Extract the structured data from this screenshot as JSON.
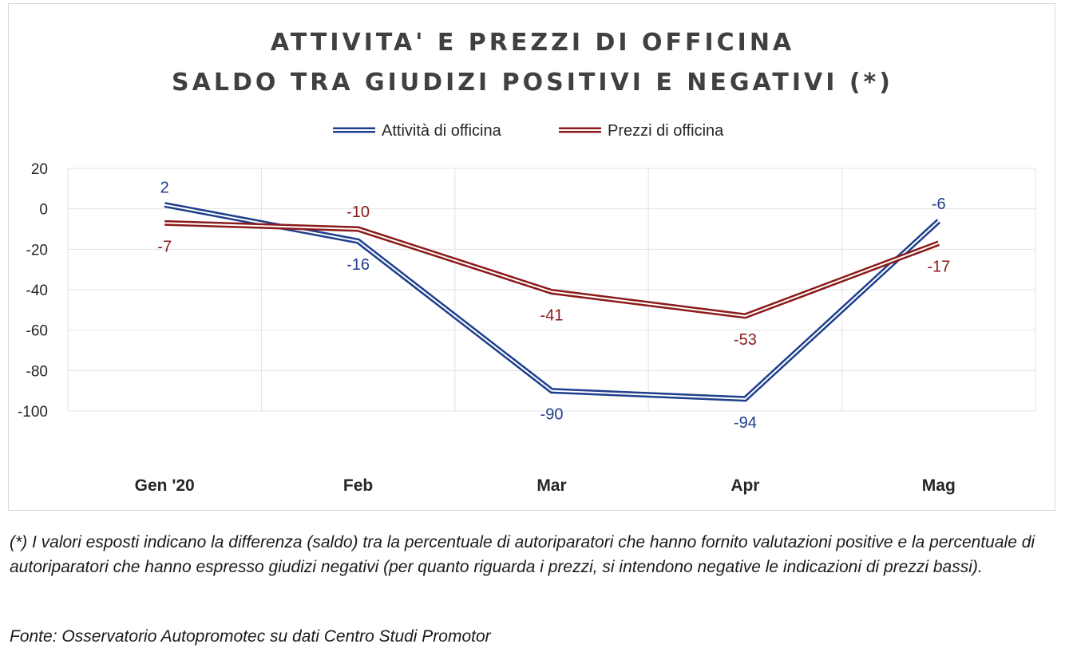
{
  "chart_data": {
    "type": "line",
    "title_lines": [
      "ATTIVITA' E PREZZI DI OFFICINA",
      "SALDO TRA GIUDIZI POSITIVI E NEGATIVI (*)"
    ],
    "categories": [
      "Gen '20",
      "Feb",
      "Mar",
      "Apr",
      "Mag"
    ],
    "series": [
      {
        "name": "Attività di officina",
        "values": [
          2,
          -16,
          -90,
          -94,
          -6
        ],
        "labels": [
          "2",
          "-16",
          "-90",
          "-94",
          "-6"
        ],
        "color": "#1F3F8C",
        "label_position": [
          "above",
          "below",
          "below",
          "below",
          "above"
        ]
      },
      {
        "name": "Prezzi di officina",
        "values": [
          -7,
          -10,
          -41,
          -53,
          -17
        ],
        "labels": [
          "-7",
          "-10",
          "-41",
          "-53",
          "-17"
        ],
        "color": "#8B1A1A",
        "label_position": [
          "below",
          "above",
          "below",
          "below",
          "below"
        ]
      }
    ],
    "yticks": [
      "20",
      "0",
      "-20",
      "-40",
      "-60",
      "-80",
      "-100"
    ],
    "ylim": [
      -100,
      20
    ],
    "grid": true,
    "legend_position": "top-center",
    "line_style": "double"
  },
  "footnote": "(*) I valori esposti indicano la differenza (saldo) tra la percentuale di autoriparatori che hanno fornito valutazioni positive e la percentuale di autoriparatori che hanno espresso giudizi negativi (per quanto riguarda i prezzi, si intendono negative le indicazioni di prezzi bassi).",
  "source": "Fonte: Osservatorio Autopromotec su dati Centro Studi Promotor"
}
